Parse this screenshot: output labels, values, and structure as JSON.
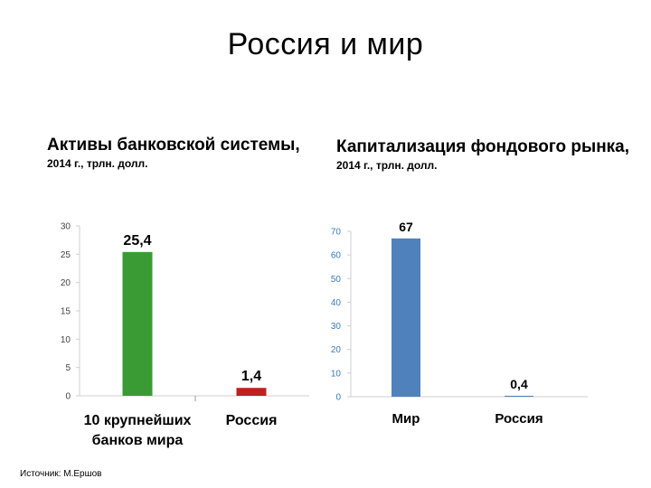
{
  "slide": {
    "title": "Россия и мир",
    "source": "Источник: М.Ершов"
  },
  "chart_data": [
    {
      "type": "bar",
      "title": "Активы банковской системы,",
      "subtitle": "2014 г., трлн. долл.",
      "categories": [
        "10 крупнейших банков мира",
        "Россия"
      ],
      "category_lines": [
        [
          "10 крупнейших",
          "банков мира"
        ],
        [
          "Россия"
        ]
      ],
      "values": [
        25.4,
        1.4
      ],
      "data_labels": [
        "25,4",
        "1,4"
      ],
      "bar_colors": [
        "#3a9b35",
        "#c0201f"
      ],
      "ylim": [
        0,
        30
      ],
      "yticks": [
        0,
        5,
        10,
        15,
        20,
        25,
        30
      ],
      "grid": false
    },
    {
      "type": "bar",
      "title": "Капитализация фондового рынка,",
      "subtitle": "2014 г., трлн. долл.",
      "categories": [
        "Мир",
        "Россия"
      ],
      "category_lines": [
        [
          "Мир"
        ],
        [
          "Россия"
        ]
      ],
      "values": [
        67,
        0.4
      ],
      "data_labels": [
        "67",
        "0,4"
      ],
      "bar_colors": [
        "#4f81bd",
        "#4f81bd"
      ],
      "ylim": [
        0,
        70
      ],
      "yticks": [
        0,
        10,
        20,
        30,
        40,
        50,
        60,
        70
      ],
      "grid": false
    }
  ]
}
